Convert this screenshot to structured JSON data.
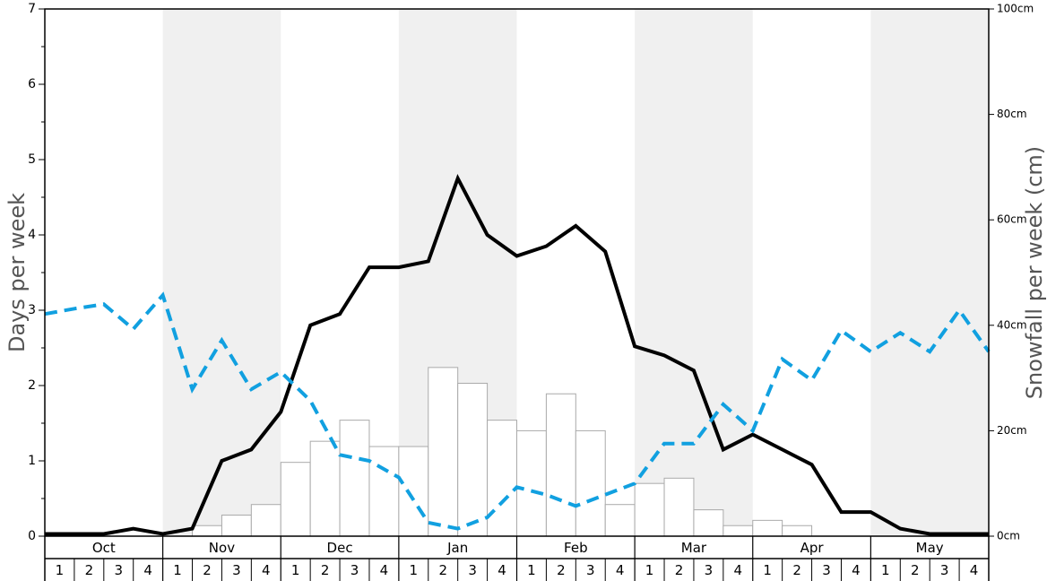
{
  "chart_data": {
    "type": "bar+line",
    "ylabel_left": "Days per week",
    "ylabel_right": "Snowfall per week (cm)",
    "ylim_left": [
      0,
      7
    ],
    "ylim_right": [
      0,
      100
    ],
    "left_ticks": [
      "0",
      "1",
      "2",
      "3",
      "4",
      "5",
      "6",
      "7"
    ],
    "right_ticks": [
      "0cm",
      "20cm",
      "40cm",
      "60cm",
      "80cm",
      "100cm"
    ],
    "months": [
      "Oct",
      "Nov",
      "Dec",
      "Jan",
      "Feb",
      "Mar",
      "Apr",
      "May"
    ],
    "week_labels": [
      "1",
      "2",
      "3",
      "4"
    ],
    "shaded_months": [
      "Nov",
      "Jan",
      "Mar",
      "May"
    ],
    "colors": {
      "shade": "#f0f0f0",
      "bar_fill": "#ffffff",
      "bar_stroke": "#aaaaaa",
      "days_line": "#000000",
      "dashed_line": "#11a0e0"
    },
    "snowfall_bars_cm": [
      0,
      0,
      0,
      0,
      0,
      2,
      4,
      6,
      14,
      18,
      22,
      17,
      17,
      32,
      29,
      22,
      20,
      27,
      20,
      6,
      10,
      11,
      5,
      2,
      3,
      2,
      0,
      0,
      0,
      0,
      0,
      0
    ],
    "series": [
      {
        "style": "solid",
        "axis": "left",
        "values": [
          0.03,
          0.03,
          0.03,
          0.1,
          0.03,
          0.1,
          1.0,
          1.15,
          1.65,
          2.8,
          2.95,
          3.57,
          3.57,
          3.65,
          4.75,
          4.0,
          3.72,
          3.85,
          4.12,
          3.78,
          2.52,
          2.4,
          2.2,
          1.15,
          1.35,
          1.15,
          0.95,
          0.32,
          0.32,
          0.1,
          0.03,
          0.03,
          0.03
        ]
      },
      {
        "style": "dashed",
        "axis": "left",
        "values": [
          2.95,
          3.02,
          3.08,
          2.75,
          3.2,
          1.95,
          2.6,
          1.95,
          2.18,
          1.8,
          1.08,
          1.0,
          0.78,
          0.18,
          0.1,
          0.25,
          0.65,
          0.55,
          0.4,
          0.55,
          0.7,
          1.23,
          1.23,
          1.75,
          1.4,
          2.35,
          2.07,
          2.73,
          2.45,
          2.7,
          2.45,
          3.0,
          2.45
        ]
      }
    ]
  }
}
